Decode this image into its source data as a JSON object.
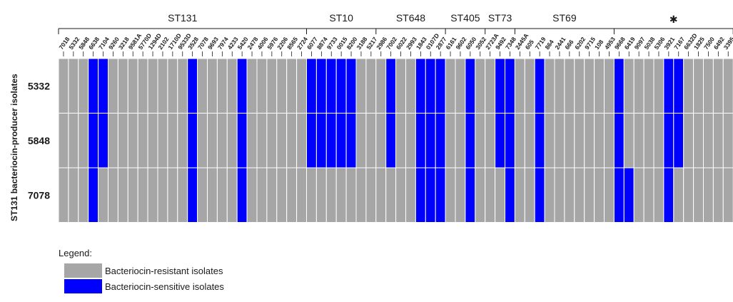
{
  "chart_data": {
    "type": "heatmap",
    "ylabel": "ST131 bacteriocin-producer isolates",
    "rows": [
      "5332",
      "5848",
      "7078"
    ],
    "columns": [
      "7018",
      "5332",
      "5848",
      "6638",
      "7104",
      "9260",
      "3218",
      "9581A",
      "5770D",
      "1294D",
      "2102",
      "1710D",
      "9533D",
      "3528",
      "7078",
      "9693",
      "7974",
      "4233",
      "5420",
      "2478",
      "4006",
      "5976",
      "2206",
      "8565",
      "2724",
      "6077",
      "8874",
      "9733",
      "0015",
      "8200",
      "3188",
      "5217",
      "2986",
      "7002",
      "6022",
      "2993",
      "1843",
      "0107D",
      "2877",
      "6161",
      "9602",
      "6050",
      "3052",
      "2723A",
      "9492",
      "7348",
      "2445A",
      "605",
      "7719",
      "864",
      "2441",
      "666",
      "6202",
      "9715",
      "108",
      "4953",
      "9668",
      "6419",
      "9097",
      "5038",
      "5306",
      "3921",
      "7167",
      "6632D",
      "1825",
      "7500",
      "6492",
      "3395"
    ],
    "groups": [
      {
        "label": "ST131",
        "start": 0,
        "end": 24
      },
      {
        "label": "ST10",
        "start": 25,
        "end": 31
      },
      {
        "label": "ST648",
        "start": 32,
        "end": 38
      },
      {
        "label": "ST405",
        "start": 39,
        "end": 42
      },
      {
        "label": "ST73",
        "start": 43,
        "end": 45
      },
      {
        "label": "ST69",
        "start": 46,
        "end": 55
      },
      {
        "label": "✱",
        "start": 56,
        "end": 67
      }
    ],
    "values": [
      [
        0,
        0,
        0,
        1,
        1,
        0,
        0,
        0,
        0,
        0,
        0,
        0,
        0,
        1,
        0,
        0,
        0,
        0,
        1,
        0,
        0,
        0,
        0,
        0,
        0,
        1,
        1,
        1,
        1,
        1,
        0,
        0,
        0,
        1,
        0,
        0,
        1,
        1,
        1,
        0,
        0,
        1,
        0,
        0,
        1,
        1,
        0,
        0,
        1,
        0,
        0,
        0,
        0,
        0,
        0,
        0,
        1,
        0,
        0,
        0,
        0,
        1,
        1,
        0,
        0,
        0,
        0,
        0
      ],
      [
        0,
        0,
        0,
        1,
        1,
        0,
        0,
        0,
        0,
        0,
        0,
        0,
        0,
        1,
        0,
        0,
        0,
        0,
        1,
        0,
        0,
        0,
        0,
        0,
        0,
        1,
        1,
        1,
        1,
        1,
        0,
        0,
        0,
        1,
        0,
        0,
        1,
        1,
        1,
        0,
        0,
        1,
        0,
        0,
        1,
        1,
        0,
        0,
        1,
        0,
        0,
        0,
        0,
        0,
        0,
        0,
        1,
        0,
        0,
        0,
        0,
        1,
        1,
        0,
        0,
        0,
        0,
        0
      ],
      [
        0,
        0,
        0,
        1,
        0,
        0,
        0,
        0,
        0,
        0,
        0,
        0,
        0,
        1,
        0,
        0,
        0,
        0,
        1,
        0,
        0,
        0,
        0,
        0,
        0,
        0,
        0,
        0,
        0,
        0,
        0,
        0,
        0,
        0,
        0,
        0,
        1,
        1,
        1,
        0,
        0,
        1,
        0,
        0,
        0,
        1,
        0,
        0,
        1,
        0,
        0,
        0,
        0,
        0,
        0,
        0,
        1,
        1,
        0,
        0,
        0,
        1,
        0,
        0,
        0,
        0,
        0,
        0
      ]
    ],
    "legend": {
      "title": "Legend:",
      "items": [
        {
          "label": "Bacteriocin-resistant isolates",
          "value": 0,
          "color": "#a6a6a6"
        },
        {
          "label": "Bacteriocin-sensitive isolates",
          "value": 1,
          "color": "#0000ff"
        }
      ]
    }
  }
}
